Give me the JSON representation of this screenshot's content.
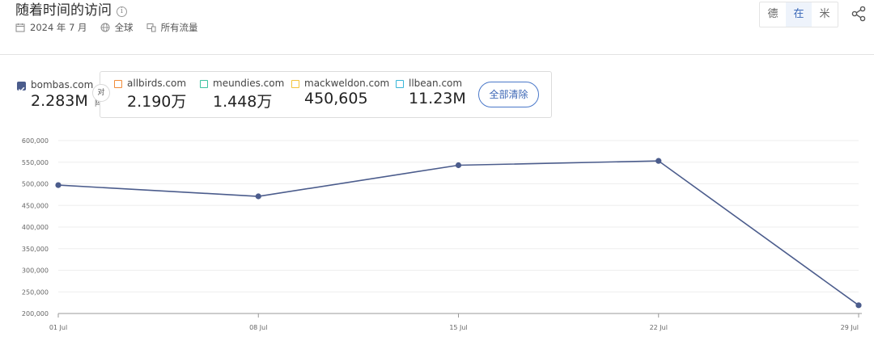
{
  "header": {
    "title": "随着时间的访问",
    "date": "2024 年 7 月",
    "region": "全球",
    "traffic": "所有流量"
  },
  "toggle": {
    "options": [
      "德",
      "在",
      "米"
    ],
    "active_index": 1
  },
  "legend": {
    "main": {
      "name": "bombas.com",
      "value": "2.283M",
      "color": "#4b5c8c"
    },
    "vs_label": "对",
    "vs_sub": "阵",
    "competitors": [
      {
        "name": "allbirds.com",
        "value": "2.190万",
        "color": "#f08c3a"
      },
      {
        "name": "meundies.com",
        "value": "1.448万",
        "color": "#3cc2a0"
      },
      {
        "name": "mackweldon.com",
        "value": "450,605",
        "color": "#f4c43a"
      },
      {
        "name": "llbean.com",
        "value": "11.23M",
        "color": "#38b6d8"
      }
    ],
    "clear_all": "全部清除"
  },
  "chart_data": {
    "type": "line",
    "categories": [
      "01 Jul",
      "08 Jul",
      "15 Jul",
      "22 Jul",
      "29 Jul"
    ],
    "series": [
      {
        "name": "bombas.com",
        "values": [
          497000,
          471000,
          543000,
          553000,
          219000
        ],
        "color": "#4b5c8c"
      }
    ],
    "ylim": [
      200000,
      600000
    ],
    "yticks": [
      200000,
      250000,
      300000,
      350000,
      400000,
      450000,
      500000,
      550000,
      600000
    ],
    "ytick_labels": [
      "200,000",
      "250,000",
      "300,000",
      "350,000",
      "400,000",
      "450,000",
      "500,000",
      "550,000",
      "600,000"
    ],
    "grid": true,
    "title": "",
    "xlabel": "",
    "ylabel": ""
  }
}
